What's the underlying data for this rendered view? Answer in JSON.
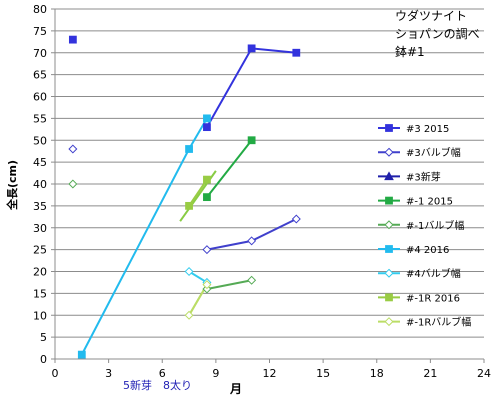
{
  "chart_data": {
    "type": "scatter",
    "title_lines": [
      "ウダツナイト",
      "ショパンの調べ",
      "鉢#1"
    ],
    "xlabel": "月",
    "ylabel": "全長(cm)",
    "xlim": [
      0,
      24
    ],
    "ylim": [
      0,
      80
    ],
    "x_ticks": [
      0,
      3,
      6,
      9,
      12,
      15,
      18,
      21,
      24
    ],
    "y_ticks": [
      0,
      5,
      10,
      15,
      20,
      25,
      30,
      35,
      40,
      45,
      50,
      55,
      60,
      65,
      70,
      75,
      80
    ],
    "annotation": "5新芽　8太り",
    "grid": "horizontal",
    "legend_position": "right",
    "series": [
      {
        "name": "#3 2015",
        "color": "#3333dd",
        "marker": "square",
        "filled": true,
        "points": [
          [
            1,
            73
          ],
          [
            8.5,
            53
          ],
          [
            11,
            71
          ],
          [
            13.5,
            70
          ]
        ],
        "line_from": 1
      },
      {
        "name": "#3バルブ幅",
        "color": "#4040cc",
        "marker": "diamond",
        "filled": false,
        "points": [
          [
            1,
            48
          ],
          [
            8.5,
            25
          ],
          [
            11,
            27
          ],
          [
            13.5,
            32
          ]
        ],
        "line_from": 1
      },
      {
        "name": "#3新芽",
        "color": "#2020aa",
        "marker": "triangle",
        "filled": true,
        "points": [],
        "line_from": 0
      },
      {
        "name": "#-1 2015",
        "color": "#22aa44",
        "marker": "square",
        "filled": true,
        "points": [
          [
            8.5,
            37
          ],
          [
            11,
            50
          ]
        ],
        "line_from": 0
      },
      {
        "name": "#-1バルブ幅",
        "color": "#55aa55",
        "marker": "diamond",
        "filled": false,
        "points": [
          [
            1,
            40
          ],
          [
            8.5,
            16
          ],
          [
            11,
            18
          ]
        ],
        "line_from": 1
      },
      {
        "name": "#4 2016",
        "color": "#22bbee",
        "marker": "square",
        "filled": true,
        "points": [
          [
            1.5,
            1
          ],
          [
            7.5,
            48
          ],
          [
            8.5,
            55
          ]
        ],
        "line_from": 0
      },
      {
        "name": "#4バルブ幅",
        "color": "#33ccee",
        "marker": "diamond",
        "filled": false,
        "points": [
          [
            7.5,
            20
          ],
          [
            8.5,
            17.5
          ]
        ],
        "line_from": 0
      },
      {
        "name": "#-1R 2016",
        "color": "#99cc44",
        "marker": "square",
        "filled": true,
        "points": [
          [
            7.5,
            35
          ],
          [
            8.5,
            41
          ]
        ],
        "line_from": 0
      },
      {
        "name": "#-1Rバルブ幅",
        "color": "#bbdd66",
        "marker": "diamond",
        "filled": false,
        "points": [
          [
            7.5,
            10
          ],
          [
            8.5,
            17
          ]
        ],
        "line_from": 0
      }
    ],
    "trend_lines": [
      {
        "color": "#88cc44",
        "from": [
          7,
          31.5
        ],
        "to": [
          9,
          43
        ]
      },
      {
        "color": "#bbdd66",
        "from": [
          7.5,
          10
        ],
        "to": [
          8.5,
          17
        ]
      }
    ]
  }
}
